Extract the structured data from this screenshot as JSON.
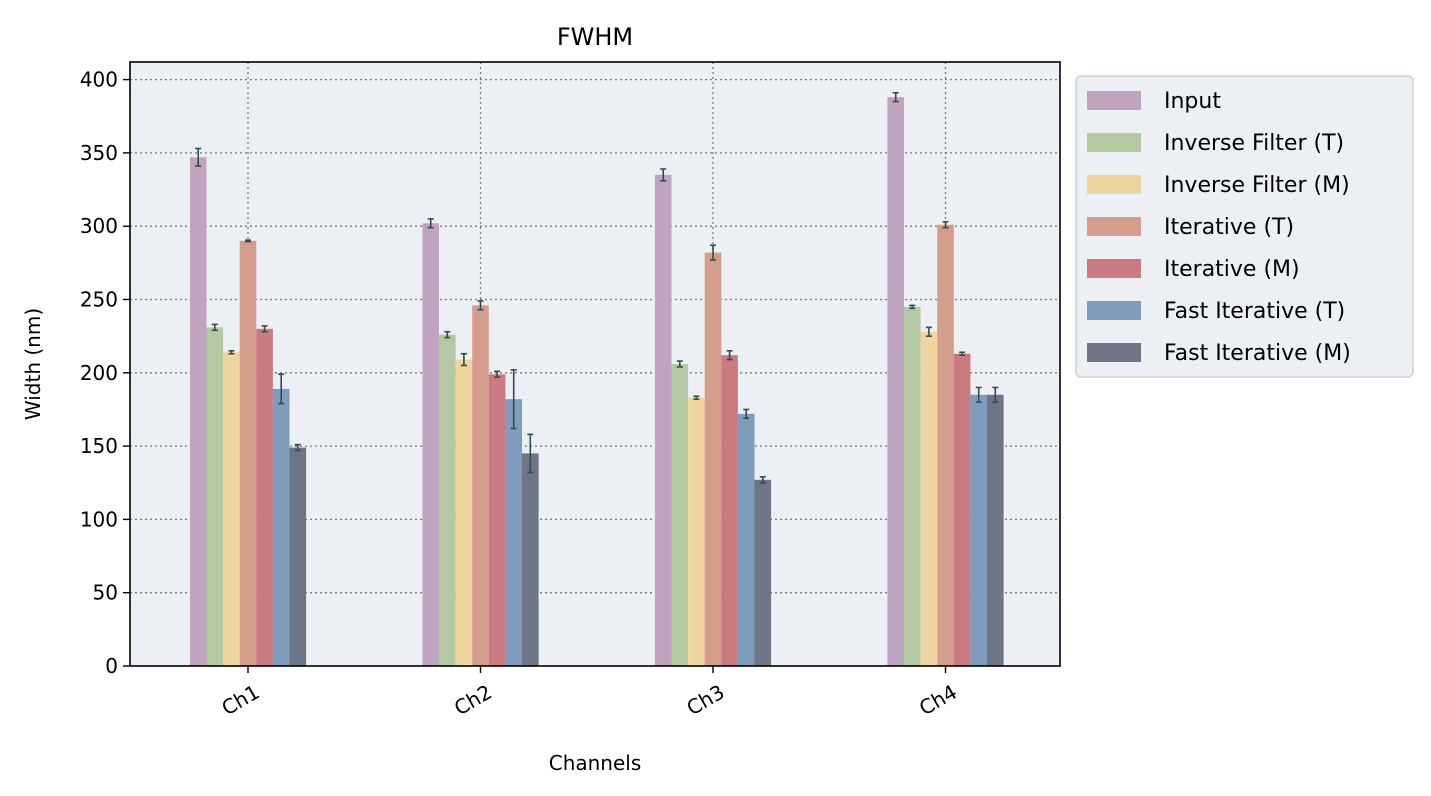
{
  "chart_data": {
    "type": "bar",
    "title": "FWHM",
    "xlabel": "Channels",
    "ylabel": "Width (nm)",
    "ylim": [
      0,
      412
    ],
    "yticks": [
      0,
      50,
      100,
      150,
      200,
      250,
      300,
      350,
      400
    ],
    "categories": [
      "Ch1",
      "Ch2",
      "Ch3",
      "Ch4"
    ],
    "grid": true,
    "legend_position": "outside-right-top",
    "series": [
      {
        "name": "Input",
        "color": "#c0a3be",
        "values": [
          347,
          302,
          335,
          388
        ],
        "errors": [
          6,
          3,
          4,
          3
        ]
      },
      {
        "name": "Inverse Filter (T)",
        "color": "#b3c9a1",
        "values": [
          231,
          226,
          206,
          245
        ],
        "errors": [
          2,
          2,
          2,
          1
        ]
      },
      {
        "name": "Inverse Filter (M)",
        "color": "#eed5a0",
        "values": [
          214,
          209,
          183,
          228
        ],
        "errors": [
          1,
          4,
          1,
          3
        ]
      },
      {
        "name": "Iterative (T)",
        "color": "#d59d8b",
        "values": [
          290,
          246,
          282,
          301
        ],
        "errors": [
          0.5,
          3,
          5,
          2
        ]
      },
      {
        "name": "Iterative (M)",
        "color": "#c97b81",
        "values": [
          230,
          199,
          212,
          213
        ],
        "errors": [
          2,
          2,
          3,
          1
        ]
      },
      {
        "name": "Fast Iterative (T)",
        "color": "#7f9cbc",
        "values": [
          189,
          182,
          172,
          185
        ],
        "errors": [
          10,
          20,
          3,
          5
        ]
      },
      {
        "name": "Fast Iterative (M)",
        "color": "#6e7586",
        "values": [
          149,
          145,
          127,
          185
        ],
        "errors": [
          2,
          13,
          2,
          5
        ]
      }
    ]
  },
  "style": {
    "plot_background": "#eceff4",
    "grid_color": "#7a7a7a",
    "error_bar_color": "#2f4f4f"
  }
}
